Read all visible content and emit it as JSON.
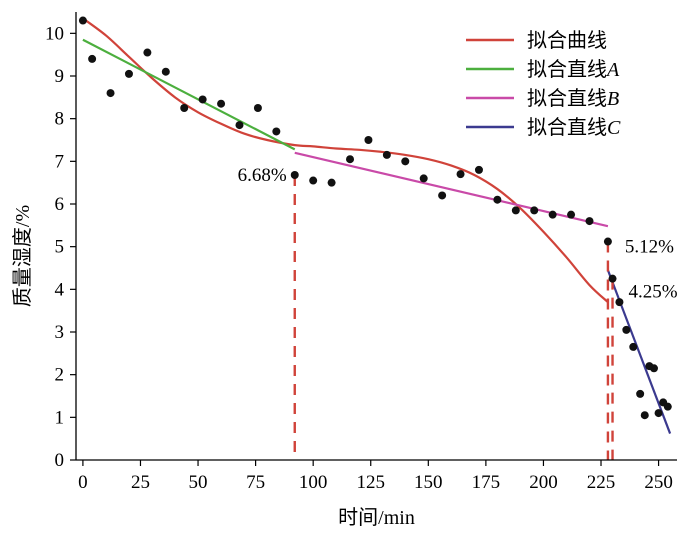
{
  "chart_data": {
    "type": "scatter",
    "xlabel": "时间/min",
    "ylabel": "质量湿度/%",
    "xlim": [
      -3,
      258
    ],
    "ylim": [
      0,
      10.5
    ],
    "xticks": [
      0,
      25,
      50,
      75,
      100,
      125,
      150,
      175,
      200,
      225,
      250
    ],
    "yticks": [
      0,
      1,
      2,
      3,
      4,
      5,
      6,
      7,
      8,
      9,
      10
    ],
    "grid": false,
    "legend_position": "top-right",
    "points": [
      {
        "x": 0,
        "y": 10.3
      },
      {
        "x": 4,
        "y": 9.4
      },
      {
        "x": 12,
        "y": 8.6
      },
      {
        "x": 20,
        "y": 9.05
      },
      {
        "x": 28,
        "y": 9.55
      },
      {
        "x": 36,
        "y": 9.1
      },
      {
        "x": 44,
        "y": 8.25
      },
      {
        "x": 52,
        "y": 8.45
      },
      {
        "x": 60,
        "y": 8.35
      },
      {
        "x": 68,
        "y": 7.85
      },
      {
        "x": 76,
        "y": 8.25
      },
      {
        "x": 84,
        "y": 7.7
      },
      {
        "x": 92,
        "y": 6.68
      },
      {
        "x": 100,
        "y": 6.55
      },
      {
        "x": 108,
        "y": 6.5
      },
      {
        "x": 116,
        "y": 7.05
      },
      {
        "x": 124,
        "y": 7.5
      },
      {
        "x": 132,
        "y": 7.15
      },
      {
        "x": 140,
        "y": 7.0
      },
      {
        "x": 148,
        "y": 6.6
      },
      {
        "x": 156,
        "y": 6.2
      },
      {
        "x": 164,
        "y": 6.7
      },
      {
        "x": 172,
        "y": 6.8
      },
      {
        "x": 180,
        "y": 6.1
      },
      {
        "x": 188,
        "y": 5.85
      },
      {
        "x": 196,
        "y": 5.85
      },
      {
        "x": 204,
        "y": 5.75
      },
      {
        "x": 212,
        "y": 5.75
      },
      {
        "x": 220,
        "y": 5.6
      },
      {
        "x": 228,
        "y": 5.12
      },
      {
        "x": 230,
        "y": 4.25
      },
      {
        "x": 233,
        "y": 3.7
      },
      {
        "x": 236,
        "y": 3.05
      },
      {
        "x": 239,
        "y": 2.65
      },
      {
        "x": 242,
        "y": 1.55
      },
      {
        "x": 244,
        "y": 1.05
      },
      {
        "x": 246,
        "y": 2.2
      },
      {
        "x": 248,
        "y": 2.15
      },
      {
        "x": 250,
        "y": 1.1
      },
      {
        "x": 252,
        "y": 1.35
      },
      {
        "x": 254,
        "y": 1.25
      }
    ],
    "fit_curve": {
      "name": "拟合曲线",
      "color": "#d0433a",
      "x": [
        0,
        10,
        20,
        30,
        40,
        50,
        60,
        70,
        80,
        92,
        100,
        110,
        120,
        130,
        140,
        150,
        160,
        170,
        180,
        190,
        200,
        210,
        220,
        228
      ],
      "y": [
        10.35,
        9.95,
        9.45,
        8.95,
        8.5,
        8.15,
        7.88,
        7.65,
        7.5,
        7.38,
        7.35,
        7.3,
        7.27,
        7.22,
        7.15,
        7.05,
        6.9,
        6.68,
        6.35,
        5.9,
        5.35,
        4.75,
        4.1,
        3.7
      ]
    },
    "fit_lines": [
      {
        "name": "拟合直线A",
        "color": "#4caf3e",
        "x": [
          0,
          92
        ],
        "y": [
          9.85,
          7.28
        ]
      },
      {
        "name": "拟合直线B",
        "color": "#c94aa8",
        "x": [
          92,
          228
        ],
        "y": [
          7.2,
          5.48
        ]
      },
      {
        "name": "拟合直线C",
        "color": "#3b3a8f",
        "x": [
          228,
          255
        ],
        "y": [
          4.45,
          0.62
        ]
      }
    ],
    "markers": [
      {
        "x": 92,
        "y": 6.68,
        "label": "6.68%",
        "color": "#d0433a"
      },
      {
        "x": 228,
        "y": 5.12,
        "label": "5.12%",
        "color": "#d0433a"
      },
      {
        "x": 230,
        "y": 4.25,
        "label": "4.25%",
        "color": "#d0433a"
      }
    ],
    "legend": [
      {
        "label": "拟合曲线",
        "italic_suffix": "",
        "color": "#d0433a"
      },
      {
        "label": "拟合直线",
        "italic_suffix": "A",
        "color": "#4caf3e"
      },
      {
        "label": "拟合直线",
        "italic_suffix": "B",
        "color": "#c94aa8"
      },
      {
        "label": "拟合直线",
        "italic_suffix": "C",
        "color": "#3b3a8f"
      }
    ]
  }
}
